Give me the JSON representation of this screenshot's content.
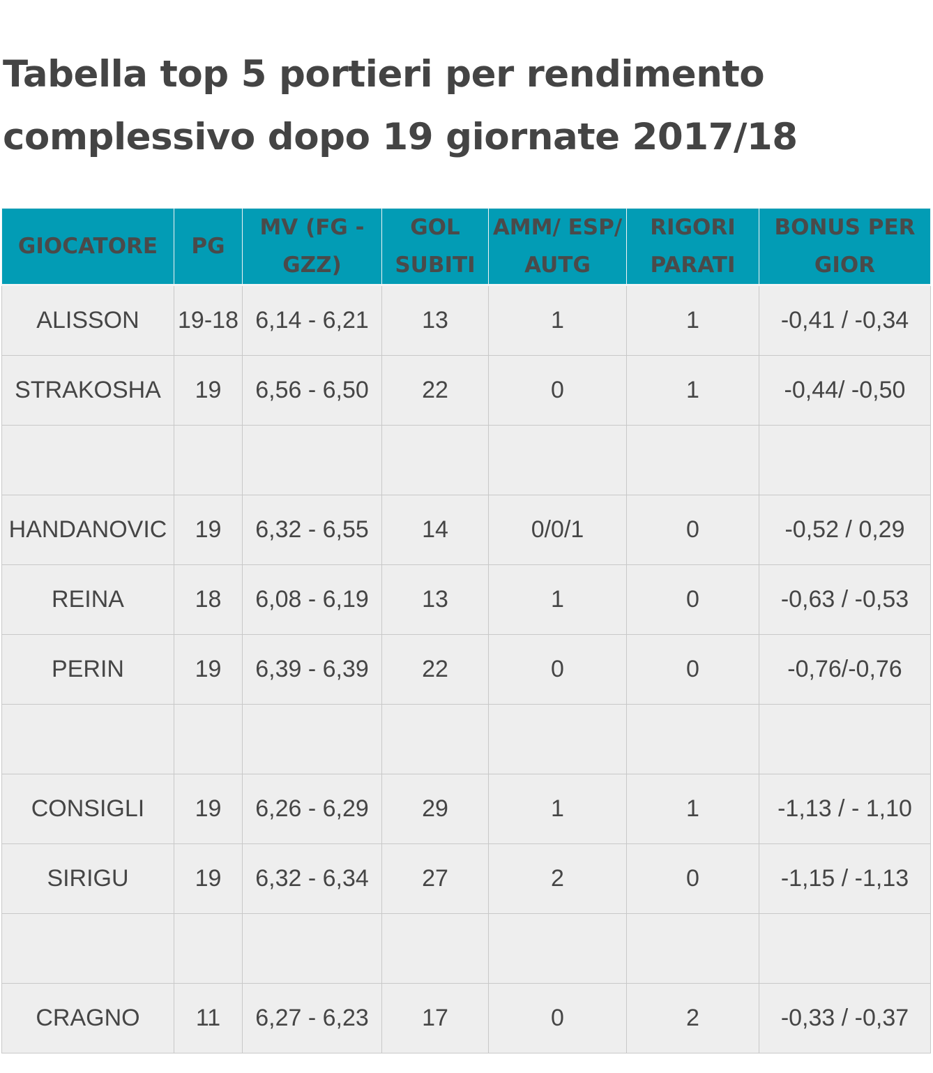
{
  "title": "Tabella top 5 portieri per rendimento complessivo dopo 19 giornate 2017/18",
  "table": {
    "headers": [
      "GIOCATORE",
      "PG",
      "MV (FG - GZZ)",
      "GOL SUBITI",
      "AMM/ ESP/ AUTG",
      "RIGORI PARATI",
      "BONUS PER GIOR"
    ],
    "rows": [
      [
        "ALISSON",
        "19-18",
        "6,14 - 6,21",
        "13",
        "1",
        "1",
        "-0,41 / -0,34"
      ],
      [
        "STRAKOSHA",
        "19",
        "6,56 - 6,50",
        "22",
        "0",
        "1",
        "-0,44/ -0,50"
      ],
      [
        "",
        "",
        "",
        "",
        "",
        "",
        ""
      ],
      [
        "HANDANOVIC",
        "19",
        "6,32 - 6,55",
        "14",
        "0/0/1",
        "0",
        "-0,52 / 0,29"
      ],
      [
        "REINA",
        "18",
        "6,08 - 6,19",
        "13",
        "1",
        "0",
        "-0,63 / -0,53"
      ],
      [
        "PERIN",
        "19",
        "6,39 - 6,39",
        "22",
        "0",
        "0",
        "-0,76/-0,76"
      ],
      [
        "",
        "",
        "",
        "",
        "",
        "",
        ""
      ],
      [
        "CONSIGLI",
        "19",
        "6,26 - 6,29",
        "29",
        "1",
        "1",
        "-1,13 / - 1,10"
      ],
      [
        "SIRIGU",
        "19",
        "6,32 - 6,34",
        "27",
        "2",
        "0",
        "-1,15 / -1,13"
      ],
      [
        "",
        "",
        "",
        "",
        "",
        "",
        ""
      ],
      [
        "CRAGNO",
        "11",
        "6,27 - 6,23",
        "17",
        "0",
        "2",
        "-0,33 / -0,37"
      ]
    ]
  },
  "colors": {
    "header_background": "#029cb5",
    "row_background": "#eeeeee",
    "text": "#444444"
  }
}
